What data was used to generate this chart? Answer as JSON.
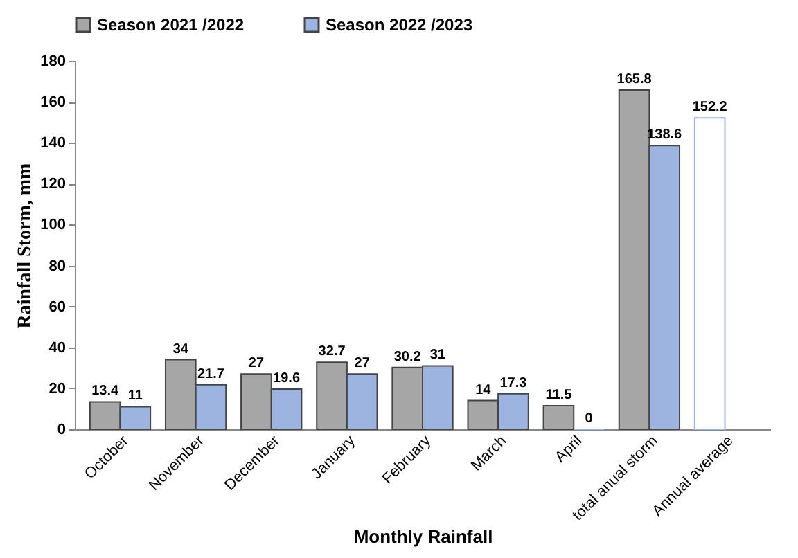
{
  "chart_data": {
    "type": "bar",
    "xlabel": "Monthly Rainfall",
    "ylabel": "Rainfall Storm, mm",
    "categories": [
      "October",
      "November",
      "December",
      "January",
      "February",
      "March",
      "April",
      "total anual storm",
      "Annual average"
    ],
    "series": [
      {
        "name": "Season 2021 /2022",
        "color": "#a6a6a6",
        "values": [
          13.4,
          34,
          27,
          32.7,
          30.2,
          14,
          11.5,
          165.8,
          null
        ]
      },
      {
        "name": "Season 2022 /2023",
        "color": "#9db3e0",
        "values": [
          11,
          21.7,
          19.6,
          27,
          31,
          17.3,
          0,
          138.6,
          null
        ]
      },
      {
        "color": "#ffffff",
        "values": [
          null,
          null,
          null,
          null,
          null,
          null,
          null,
          null,
          152.2
        ]
      }
    ],
    "ylim": [
      0,
      180
    ],
    "yticks": [
      0,
      20,
      40,
      60,
      80,
      100,
      120,
      140,
      160,
      180
    ],
    "grid": false,
    "legend": "top",
    "data_labels": true
  }
}
